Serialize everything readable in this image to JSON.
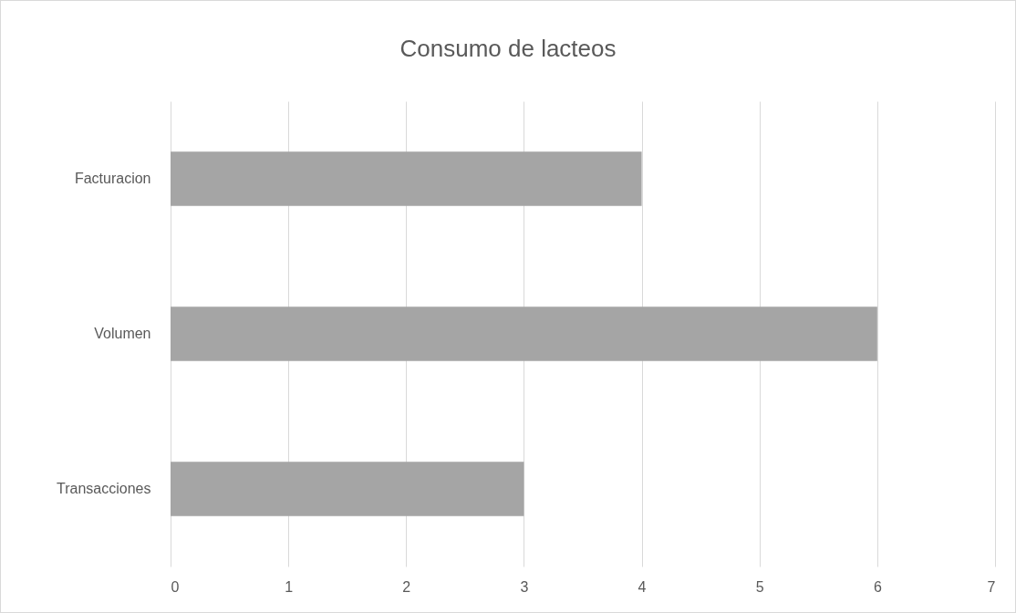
{
  "chart_data": {
    "type": "bar",
    "orientation": "horizontal",
    "title": "Consumo de lacteos",
    "categories": [
      "Facturacion",
      "Volumen",
      "Transacciones"
    ],
    "values": [
      4,
      6,
      3
    ],
    "color": "#a5a5a5",
    "xlim": [
      0,
      7
    ],
    "xticks": [
      0,
      1,
      2,
      3,
      4,
      5,
      6,
      7
    ],
    "grid": "x"
  }
}
